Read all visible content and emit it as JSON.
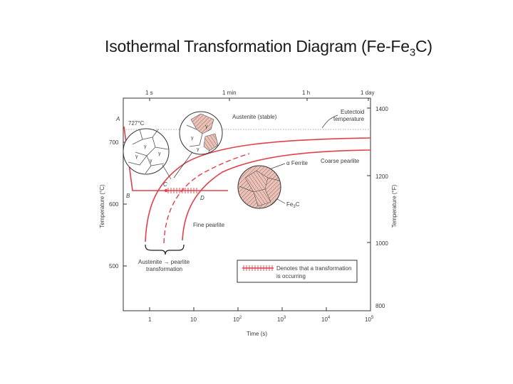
{
  "slide": {
    "title_main": "Isothermal Transformation Diagram (Fe-Fe",
    "title_sub": "3",
    "title_end": "C)"
  },
  "diagram": {
    "top_time_labels": [
      "1 s",
      "1 min",
      "1 h",
      "1 day"
    ],
    "left_axis": {
      "label": "Temperature (°C)",
      "ticks": [
        "700",
        "600",
        "500"
      ]
    },
    "right_axis": {
      "label": "Temperature (°F)",
      "ticks": [
        "1400",
        "1200",
        "1000",
        "800"
      ]
    },
    "x_axis": {
      "label": "Time (s)",
      "ticks": [
        "1",
        "10",
        "10",
        "10",
        "10",
        "10"
      ],
      "exponents": [
        "2",
        "3",
        "4",
        "5"
      ]
    },
    "eutectoid_temp_label": "727°C",
    "point_labels": {
      "A": "A",
      "B": "B",
      "C": "C",
      "D": "D"
    },
    "annotations": {
      "austenite_stable": "Austenite (stable)",
      "eutectoid_line1": "Eutectoid",
      "eutectoid_line2": "temperature",
      "alpha_ferrite": "α Ferrite",
      "coarse_pearlite": "Coarse pearlite",
      "fe3c_main": "Fe",
      "fe3c_sub": "3",
      "fe3c_end": "C",
      "fine_pearlite": "Fine pearlite",
      "transformation_line1": "Austenite → pearlite",
      "transformation_line2": "transformation",
      "gamma": "γ"
    },
    "legend": {
      "line1": "Denotes that a transformation",
      "line2": "is occurring"
    },
    "colors": {
      "curve": "#e0404a",
      "frame": "#333333",
      "pearlite_fill": "#e9b9b0"
    }
  }
}
